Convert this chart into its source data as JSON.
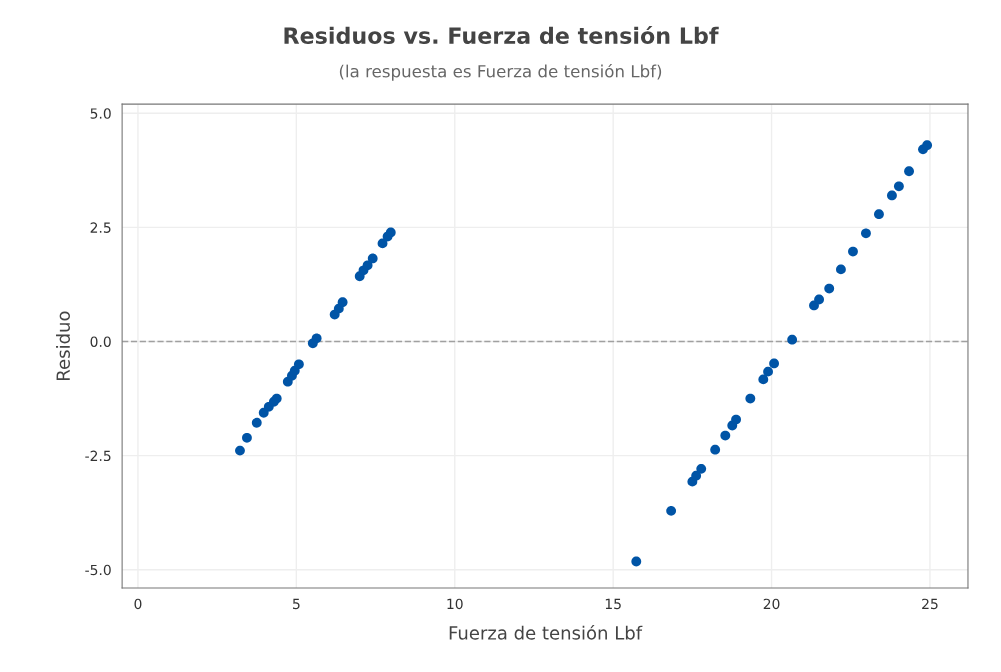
{
  "chart_data": {
    "type": "scatter",
    "title": "Residuos vs. Fuerza de tensión Lbf",
    "subtitle": "(la respuesta es Fuerza de tensión Lbf)",
    "xlabel": "Fuerza de tensión Lbf",
    "ylabel": "Residuo",
    "x": [
      3.22,
      3.44,
      3.75,
      3.97,
      4.13,
      4.29,
      4.38,
      4.73,
      4.86,
      4.95,
      5.08,
      5.52,
      5.64,
      6.21,
      6.34,
      6.46,
      7.0,
      7.12,
      7.25,
      7.41,
      7.72,
      7.88,
      7.98,
      15.73,
      16.83,
      17.5,
      17.62,
      17.78,
      18.22,
      18.54,
      18.76,
      18.88,
      19.33,
      19.74,
      19.89,
      20.08,
      20.65,
      21.34,
      21.5,
      21.82,
      22.19,
      22.57,
      22.98,
      23.39,
      23.8,
      24.02,
      24.34,
      24.78,
      24.91
    ],
    "series": [
      {
        "color": "#0054a6",
        "values": [
          -2.39,
          -2.11,
          -1.78,
          -1.56,
          -1.43,
          -1.32,
          -1.25,
          -0.88,
          -0.75,
          -0.64,
          -0.5,
          -0.04,
          0.07,
          0.59,
          0.72,
          0.86,
          1.43,
          1.56,
          1.67,
          1.82,
          2.15,
          2.3,
          2.39,
          -4.82,
          -3.71,
          -3.07,
          -2.94,
          -2.79,
          -2.37,
          -2.06,
          -1.84,
          -1.71,
          -1.25,
          -0.83,
          -0.66,
          -0.48,
          0.04,
          0.79,
          0.92,
          1.16,
          1.58,
          1.97,
          2.37,
          2.79,
          3.2,
          3.4,
          3.73,
          4.21,
          4.3
        ]
      }
    ],
    "xlim": [
      -0.5,
      26.2
    ],
    "xticks": [
      0,
      5,
      10,
      15,
      20,
      25
    ],
    "ylim": [
      -5.4,
      5.2
    ],
    "yticks": [
      {
        "value": 5,
        "label": "5.0"
      },
      {
        "value": 2.5,
        "label": "2.5"
      },
      {
        "value": 0,
        "label": "0.0"
      },
      {
        "value": -2.5,
        "label": "-2.5"
      },
      {
        "value": -5,
        "label": "-5.0"
      }
    ],
    "ref_lines": [
      {
        "axis": "y",
        "value": 0,
        "color": "#a0a0a0",
        "line_style": "dashed"
      }
    ],
    "grid": true,
    "marker": "circle"
  }
}
